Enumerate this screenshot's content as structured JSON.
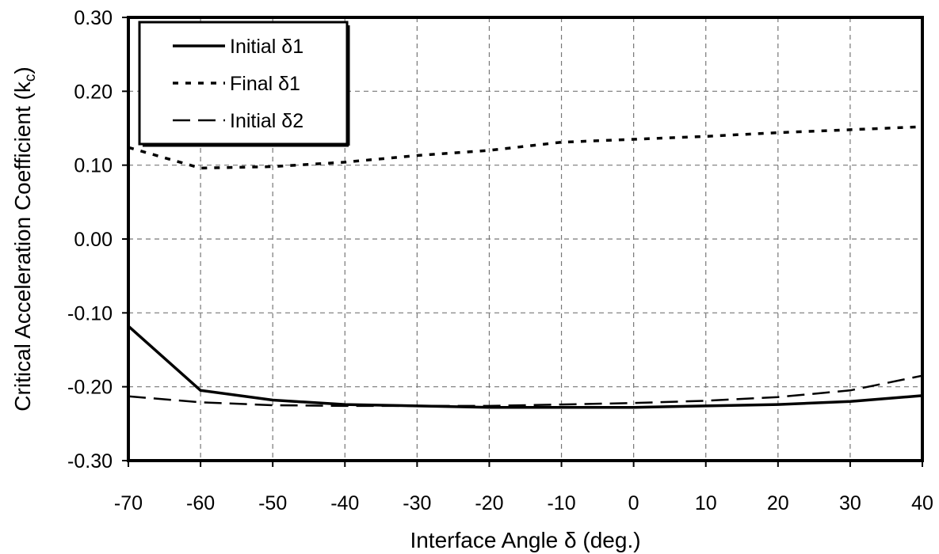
{
  "chart_data": {
    "type": "line",
    "title": "",
    "xlabel": "Interface Angle δ (deg.)",
    "ylabel_main": "Critical Acceleration Coefficient (k",
    "ylabel_sub": "c",
    "ylabel_close": ")",
    "xlim": [
      -70,
      40
    ],
    "ylim": [
      -0.3,
      0.3
    ],
    "x_ticks": [
      -70,
      -60,
      -50,
      -40,
      -30,
      -20,
      -10,
      0,
      10,
      20,
      30,
      40
    ],
    "x_tick_labels": [
      "-70",
      "-60",
      "-50",
      "-40",
      "-30",
      "-20",
      "-10",
      "0",
      "10",
      "20",
      "30",
      "40"
    ],
    "y_ticks": [
      -0.3,
      -0.2,
      -0.1,
      0.0,
      0.1,
      0.2,
      0.3
    ],
    "y_tick_labels": [
      "-0.30",
      "-0.20",
      "-0.10",
      "0.00",
      "0.10",
      "0.20",
      "0.30"
    ],
    "grid": true,
    "legend_position": "top-left",
    "series": [
      {
        "name": "Initial δ1",
        "style": "solid",
        "x": [
          -70,
          -60,
          -50,
          -40,
          -30,
          -20,
          -10,
          0,
          10,
          20,
          30,
          40
        ],
        "y": [
          -0.118,
          -0.205,
          -0.218,
          -0.224,
          -0.226,
          -0.228,
          -0.228,
          -0.228,
          -0.226,
          -0.224,
          -0.22,
          -0.212
        ]
      },
      {
        "name": "Final δ1",
        "style": "dotted",
        "x": [
          -70,
          -60,
          -50,
          -40,
          -30,
          -20,
          -10,
          0,
          10,
          20,
          30,
          40
        ],
        "y": [
          0.124,
          0.096,
          0.098,
          0.104,
          0.113,
          0.12,
          0.131,
          0.135,
          0.139,
          0.144,
          0.148,
          0.152
        ]
      },
      {
        "name": "Initial δ2",
        "style": "dashed",
        "x": [
          -70,
          -60,
          -50,
          -40,
          -30,
          -20,
          -10,
          0,
          10,
          20,
          30,
          40
        ],
        "y": [
          -0.213,
          -0.221,
          -0.225,
          -0.226,
          -0.226,
          -0.226,
          -0.224,
          -0.222,
          -0.219,
          -0.214,
          -0.205,
          -0.185
        ]
      }
    ]
  }
}
